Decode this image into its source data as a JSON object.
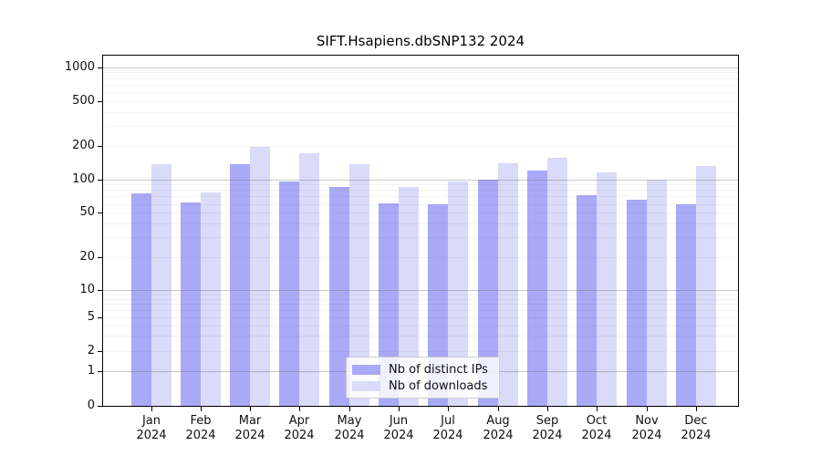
{
  "chart_data": {
    "type": "bar",
    "title": "SIFT.Hsapiens.dbSNP132 2024",
    "categories": [
      "Jan",
      "Feb",
      "Mar",
      "Apr",
      "May",
      "Jun",
      "Jul",
      "Aug",
      "Sep",
      "Oct",
      "Nov",
      "Dec"
    ],
    "x_year_label": "2024",
    "series": [
      {
        "name": "Nb of distinct IPs",
        "color": "#a9a9f7",
        "values": [
          74,
          61,
          134,
          93,
          83,
          60,
          58,
          98,
          118,
          71,
          64,
          59
        ]
      },
      {
        "name": "Nb of downloads",
        "color": "#dadaf9",
        "values": [
          134,
          75,
          193,
          168,
          134,
          84,
          93,
          137,
          154,
          113,
          98,
          129
        ]
      }
    ],
    "y_ticks": [
      1000,
      500,
      200,
      100,
      50,
      20,
      10,
      5,
      2,
      1,
      0
    ],
    "yscale": "symlog",
    "ylim": [
      0,
      1000
    ],
    "grid": true,
    "legend_position": "lower center",
    "xlabel": "",
    "ylabel": ""
  }
}
